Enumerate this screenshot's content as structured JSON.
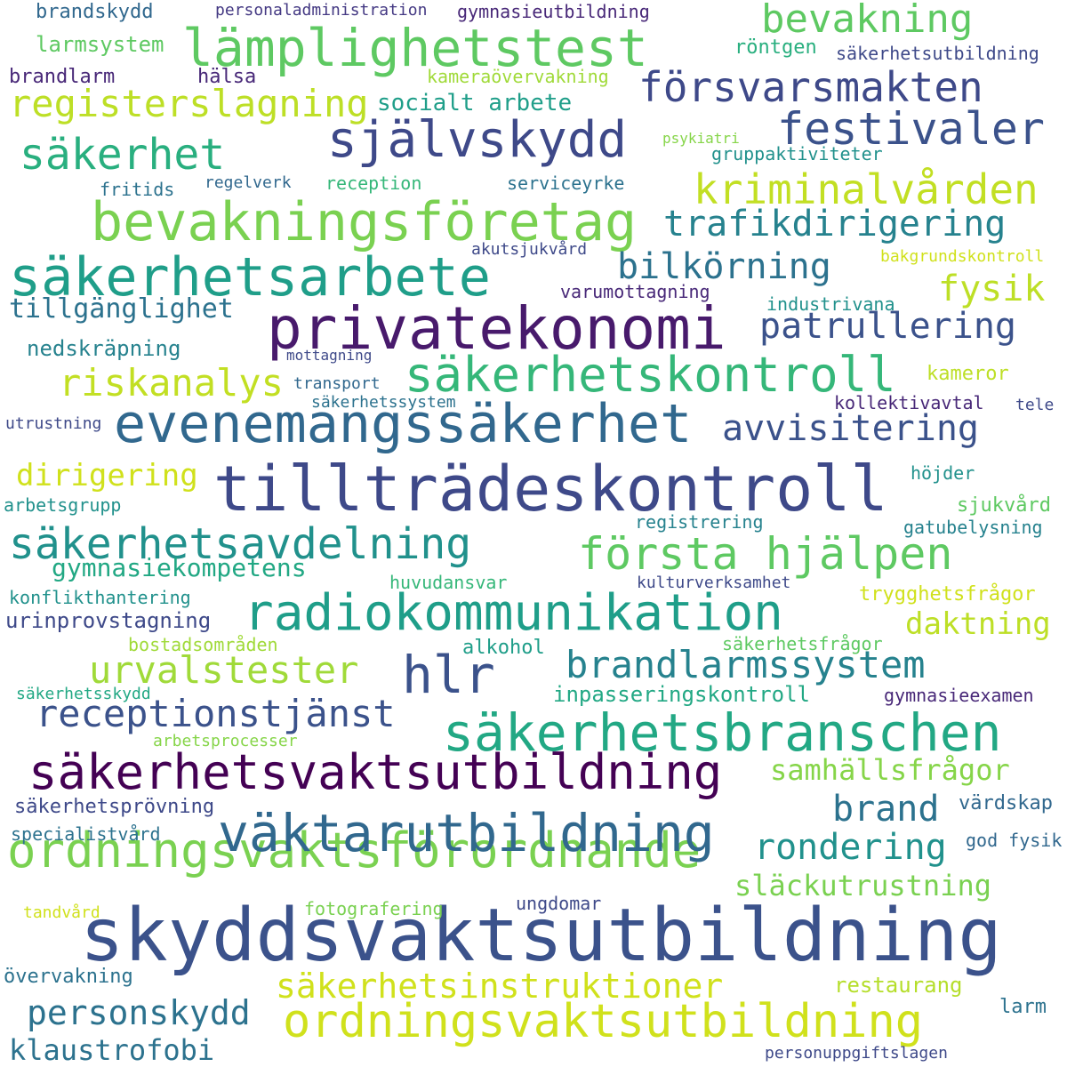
{
  "words": [
    {
      "text": "skyddsvaktsutbildning",
      "color": "#3b528b"
    },
    {
      "text": "tillträdeskontroll",
      "color": "#3e4989"
    },
    {
      "text": "privatekonomi",
      "color": "#481a6c"
    },
    {
      "text": "ordningsvaktsutbildning",
      "color": "#d0e11c"
    },
    {
      "text": "säkerhetsvaktsutbildning",
      "color": "#440154"
    },
    {
      "text": "ordningsvaktsförordnande",
      "color": "#7ad151"
    },
    {
      "text": "väktarutbildning",
      "color": "#31688e"
    },
    {
      "text": "evenemangssäkerhet",
      "color": "#31688e"
    },
    {
      "text": "bevakningsföretag",
      "color": "#7ad151"
    },
    {
      "text": "säkerhetsbranschen",
      "color": "#22a884"
    },
    {
      "text": "säkerhetsarbete",
      "color": "#1f9e89"
    },
    {
      "text": "radiokommunikation",
      "color": "#1f9e89"
    },
    {
      "text": "lämplighetstest",
      "color": "#5ec962"
    },
    {
      "text": "självskydd",
      "color": "#3e4989"
    },
    {
      "text": "säkerhetskontroll",
      "color": "#35b779"
    },
    {
      "text": "säkerhetsinstruktioner",
      "color": "#d0e11c"
    },
    {
      "text": "säkerhetsavdelning",
      "color": "#21918c"
    },
    {
      "text": "första hjälpen",
      "color": "#5ec962"
    },
    {
      "text": "hlr",
      "color": "#3b528b"
    },
    {
      "text": "brandlarmssystem",
      "color": "#26828e"
    },
    {
      "text": "receptionstjänst",
      "color": "#3b528b"
    },
    {
      "text": "försvarsmakten",
      "color": "#3e4989"
    },
    {
      "text": "kriminalvården",
      "color": "#c2df23"
    },
    {
      "text": "festivaler",
      "color": "#3b528b"
    },
    {
      "text": "bevakning",
      "color": "#5ec962"
    },
    {
      "text": "personskydd",
      "color": "#2c728e"
    },
    {
      "text": "urvalstester",
      "color": "#a0da39"
    },
    {
      "text": "registerslagning",
      "color": "#bddf26"
    },
    {
      "text": "säkerhet",
      "color": "#29af7f"
    },
    {
      "text": "trafikdirigering",
      "color": "#26828e"
    },
    {
      "text": "bilkörning",
      "color": "#2c728e"
    },
    {
      "text": "patrullering",
      "color": "#3b528b"
    },
    {
      "text": "avvisitering",
      "color": "#3b528b"
    },
    {
      "text": "riskanalys",
      "color": "#c2df23"
    },
    {
      "text": "rondering",
      "color": "#21918c"
    },
    {
      "text": "brand",
      "color": "#2c728e"
    },
    {
      "text": "fysik",
      "color": "#bddf26"
    },
    {
      "text": "klaustrofobi",
      "color": "#2c728e"
    },
    {
      "text": "tillgänglighet",
      "color": "#2c728e"
    },
    {
      "text": "samhällsfrågor",
      "color": "#86d549"
    },
    {
      "text": "släckutrustning",
      "color": "#7ad151"
    },
    {
      "text": "dirigering",
      "color": "#d0e11c"
    },
    {
      "text": "daktning",
      "color": "#bddf26"
    },
    {
      "text": "restaurang",
      "color": "#b5de2b"
    },
    {
      "text": "gymnasiekompetens",
      "color": "#22a884"
    },
    {
      "text": "socialt arbete",
      "color": "#1f9e89"
    },
    {
      "text": "brandskydd",
      "color": "#31688e"
    },
    {
      "text": "larmsystem",
      "color": "#5ec962"
    },
    {
      "text": "brandlarm",
      "color": "#482878"
    },
    {
      "text": "hälsa",
      "color": "#482878"
    },
    {
      "text": "personaladministration",
      "color": "#443983"
    },
    {
      "text": "gymnasieutbildning",
      "color": "#482878"
    },
    {
      "text": "röntgen",
      "color": "#29af7f"
    },
    {
      "text": "säkerhetsutbildning",
      "color": "#3e4989"
    },
    {
      "text": "kameraövervakning",
      "color": "#a0da39"
    },
    {
      "text": "psykiatri",
      "color": "#86d549"
    },
    {
      "text": "gruppaktiviteter",
      "color": "#21918c"
    },
    {
      "text": "fritids",
      "color": "#2c728e"
    },
    {
      "text": "regelverk",
      "color": "#31688e"
    },
    {
      "text": "reception",
      "color": "#35b779"
    },
    {
      "text": "serviceyrke",
      "color": "#2c728e"
    },
    {
      "text": "akutsjukvård",
      "color": "#3e4989"
    },
    {
      "text": "bakgrundskontroll",
      "color": "#d0e11c"
    },
    {
      "text": "varumottagning",
      "color": "#482878"
    },
    {
      "text": "industrivana",
      "color": "#21918c"
    },
    {
      "text": "nedskräpning",
      "color": "#26828e"
    },
    {
      "text": "mottagning",
      "color": "#3e4989"
    },
    {
      "text": "transport",
      "color": "#31688e"
    },
    {
      "text": "säkerhetssystem",
      "color": "#2c728e"
    },
    {
      "text": "kameror",
      "color": "#bddf26"
    },
    {
      "text": "kollektivavtal",
      "color": "#482878"
    },
    {
      "text": "tele",
      "color": "#3e4989"
    },
    {
      "text": "utrustning",
      "color": "#3e4989"
    },
    {
      "text": "höjder",
      "color": "#21918c"
    },
    {
      "text": "arbetsgrupp",
      "color": "#21918c"
    },
    {
      "text": "registrering",
      "color": "#26828e"
    },
    {
      "text": "sjukvård",
      "color": "#5ec962"
    },
    {
      "text": "gatubelysning",
      "color": "#26828e"
    },
    {
      "text": "huvudansvar",
      "color": "#35b779"
    },
    {
      "text": "kulturverksamhet",
      "color": "#3e4989"
    },
    {
      "text": "konflikthantering",
      "color": "#21918c"
    },
    {
      "text": "trygghetsfrågor",
      "color": "#d0e11c"
    },
    {
      "text": "urinprovstagning",
      "color": "#3e4989"
    },
    {
      "text": "bostadsområden",
      "color": "#a0da39"
    },
    {
      "text": "alkohol",
      "color": "#1f9e89"
    },
    {
      "text": "säkerhetsfrågor",
      "color": "#5ec962"
    },
    {
      "text": "inpasseringskontroll",
      "color": "#22a884"
    },
    {
      "text": "säkerhetsskydd",
      "color": "#22a884"
    },
    {
      "text": "gymnasieexamen",
      "color": "#482878"
    },
    {
      "text": "arbetsprocesser",
      "color": "#86d549"
    },
    {
      "text": "säkerhetsprövning",
      "color": "#3e4989"
    },
    {
      "text": "värdskap",
      "color": "#31688e"
    },
    {
      "text": "specialistvård",
      "color": "#2c728e"
    },
    {
      "text": "god fysik",
      "color": "#31688e"
    },
    {
      "text": "tandvård",
      "color": "#d0e11c"
    },
    {
      "text": "fotografering",
      "color": "#7ad151"
    },
    {
      "text": "ungdomar",
      "color": "#3e4989"
    },
    {
      "text": "övervakning",
      "color": "#2c728e"
    },
    {
      "text": "larm",
      "color": "#2c728e"
    },
    {
      "text": "personuppgiftslagen",
      "color": "#3e4989"
    }
  ]
}
